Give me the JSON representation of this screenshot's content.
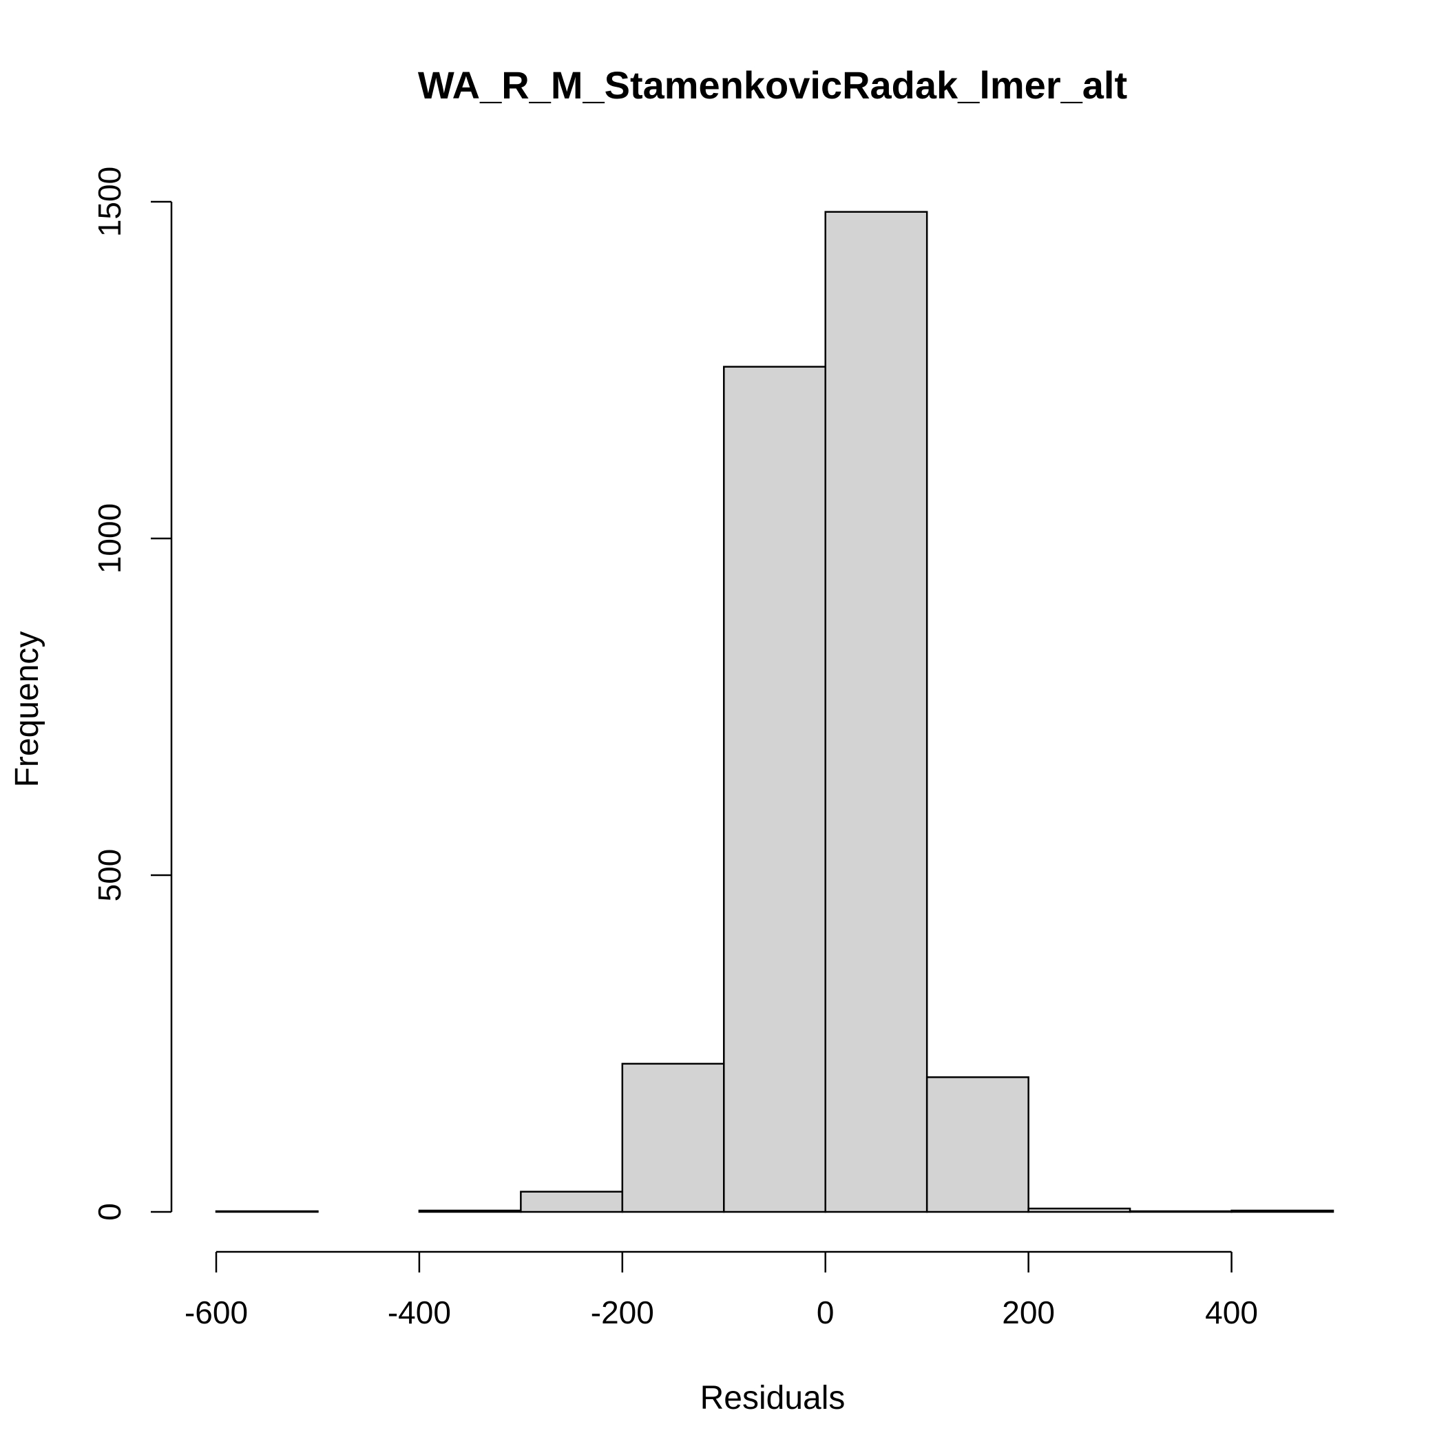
{
  "chart_data": {
    "type": "bar",
    "subtype": "histogram",
    "title": "WA_R_M_StamenkovicRadak_lmer_alt",
    "xlabel": "Residuals",
    "ylabel": "Frequency",
    "bin_edges": [
      -600,
      -500,
      -400,
      -300,
      -200,
      -100,
      0,
      100,
      200,
      300,
      400,
      500
    ],
    "values": [
      1,
      0,
      2,
      30,
      220,
      1255,
      1485,
      200,
      5,
      1,
      2
    ],
    "xlim": [
      -600,
      500
    ],
    "ylim": [
      0,
      1500
    ],
    "x_ticks": [
      -600,
      -400,
      -200,
      0,
      200,
      400
    ],
    "x_tick_labels": [
      "-600",
      "-400",
      "-200",
      "0",
      "200",
      "400"
    ],
    "y_ticks": [
      0,
      500,
      1000,
      1500
    ],
    "y_tick_labels": [
      "0",
      "500",
      "1000",
      "1500"
    ],
    "bar_color": "#d3d3d3",
    "edge_color": "#000000",
    "grid": false,
    "legend": "none"
  }
}
